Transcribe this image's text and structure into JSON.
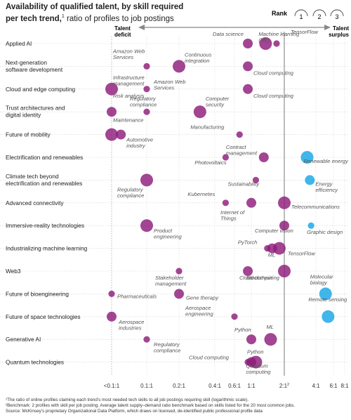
{
  "header": {
    "title_bold": "Availability of qualified talent, by skill required per tech trend,",
    "title_sup": "1",
    "title_rest": "ratio of profiles to job postings"
  },
  "rank_legend": {
    "label": "Rank",
    "ranks": [
      "1",
      "2",
      "3"
    ]
  },
  "axis_labels": {
    "left": "Talent deficit",
    "right": "Talent surplus"
  },
  "colors": {
    "purple": "#8E1C7A",
    "blue": "#1FA9E6",
    "grid": "#bdbdbd"
  },
  "chart_data": {
    "type": "scatter",
    "x_scale": "log",
    "x_ticks": [
      "<0.1:1",
      "0.1:1",
      "0.2:1",
      "0.4:1",
      "0.6:1",
      "1:1",
      "2:1",
      "4:1",
      "6:1",
      "8:1"
    ],
    "x_tick_values": [
      0.05,
      0.1,
      0.2,
      0.4,
      0.6,
      1,
      2,
      4,
      6,
      8
    ],
    "x_tick_sups": [
      "",
      "",
      "",
      "",
      "",
      "",
      "2",
      "",
      "",
      ""
    ],
    "benchmark_ratio": 2,
    "trends": [
      "Applied AI",
      "Next-generation software development",
      "Cloud and edge computing",
      "Trust architectures and digital identity",
      "Future of mobility",
      "Electrification and renewables",
      "Climate tech beyond electrification and renewables",
      "Advanced connectivity",
      "Immersive-reality technologies",
      "Industrializing machine learning",
      "Web3",
      "Future of bioengineering",
      "Future of space technologies",
      "Generative AI",
      "Quantum technologies"
    ],
    "trend_lines": [
      [
        "Applied AI"
      ],
      [
        "Next-generation",
        "software development"
      ],
      [
        "Cloud and edge computing"
      ],
      [
        "Trust architectures and",
        "digital identity"
      ],
      [
        "Future of mobility"
      ],
      [
        "Electrification and renewables"
      ],
      [
        "Climate tech beyond",
        "electrification and renewables"
      ],
      [
        "Advanced connectivity"
      ],
      [
        "Immersive-reality technologies"
      ],
      [
        "Industrializing machine learning"
      ],
      [
        "Web3"
      ],
      [
        "Future of bioengineering"
      ],
      [
        "Future of space technologies"
      ],
      [
        "Generative AI"
      ],
      [
        "Quantum technologies"
      ]
    ],
    "skills": [
      {
        "row": 0,
        "x": 0.9,
        "rank": 2,
        "label": "Data science"
      },
      {
        "row": 0,
        "x": 1.35,
        "rank": 1,
        "label": "Machine learning (ML)"
      },
      {
        "row": 0,
        "x": 1.7,
        "rank": 3,
        "label": "TensorFlow"
      },
      {
        "row": 1,
        "x": 0.1,
        "rank": 3,
        "label": "Amazon Web Services"
      },
      {
        "row": 1,
        "x": 0.2,
        "rank": 1,
        "label": "Continuous integration"
      },
      {
        "row": 1,
        "x": 0.9,
        "rank": 2,
        "label": "Cloud computing"
      },
      {
        "row": 2,
        "x": 0.05,
        "rank": 1,
        "label": "Infrastructure management"
      },
      {
        "row": 2,
        "x": 0.1,
        "rank": 3,
        "label": "Amazon Web Services"
      },
      {
        "row": 2,
        "x": 0.9,
        "rank": 2,
        "label": "Cloud computing"
      },
      {
        "row": 3,
        "x": 0.05,
        "rank": 2,
        "label": "Risk analysis"
      },
      {
        "row": 3,
        "x": 0.1,
        "rank": 3,
        "label": "Regulatory compliance"
      },
      {
        "row": 3,
        "x": 0.3,
        "rank": 1,
        "label": "Computer security"
      },
      {
        "row": 4,
        "x": 0.05,
        "rank": 1,
        "label": "Maintenance"
      },
      {
        "row": 4,
        "x": 0.06,
        "rank": 2,
        "label": "Automotive industry"
      },
      {
        "row": 4,
        "x": 0.7,
        "rank": 3,
        "label": "Manufacturing"
      },
      {
        "row": 5,
        "x": 0.5,
        "rank": 3,
        "label": "Photovoltaics"
      },
      {
        "row": 5,
        "x": 1.3,
        "rank": 2,
        "label": "Contract management"
      },
      {
        "row": 5,
        "x": 3.3,
        "rank": 1,
        "label": "Renewable energy"
      },
      {
        "row": 6,
        "x": 0.1,
        "rank": 1,
        "label": "Regulatory compliance"
      },
      {
        "row": 6,
        "x": 1.1,
        "rank": 3,
        "label": "Sustainability"
      },
      {
        "row": 6,
        "x": 3.5,
        "rank": 2,
        "label": "Energy efficiency"
      },
      {
        "row": 7,
        "x": 0.5,
        "rank": 3,
        "label": "Kubernetes"
      },
      {
        "row": 7,
        "x": 1.0,
        "rank": 2,
        "label": "Internet of Things"
      },
      {
        "row": 7,
        "x": 2.0,
        "rank": 1,
        "label": "Telecommunications"
      },
      {
        "row": 8,
        "x": 0.1,
        "rank": 1,
        "label": "Product engineering"
      },
      {
        "row": 8,
        "x": 2.0,
        "rank": 2,
        "label": "Computer vision"
      },
      {
        "row": 8,
        "x": 3.6,
        "rank": 3,
        "label": "Graphic design"
      },
      {
        "row": 9,
        "x": 1.4,
        "rank": 3,
        "label": "PyTorch"
      },
      {
        "row": 9,
        "x": 1.55,
        "rank": 2,
        "label": "ML"
      },
      {
        "row": 9,
        "x": 1.8,
        "rank": 1,
        "label": "TensorFlow"
      },
      {
        "row": 10,
        "x": 0.2,
        "rank": 3,
        "label": "Stakeholder management"
      },
      {
        "row": 10,
        "x": 0.9,
        "rank": 2,
        "label": "Cloud computing"
      },
      {
        "row": 10,
        "x": 2.0,
        "rank": 1,
        "label": "Blockchain"
      },
      {
        "row": 11,
        "x": 0.05,
        "rank": 3,
        "label": "Pharmaceuticals"
      },
      {
        "row": 11,
        "x": 0.2,
        "rank": 2,
        "label": "Gene therapy"
      },
      {
        "row": 11,
        "x": 5.0,
        "rank": 1,
        "label": "Molecular biology"
      },
      {
        "row": 12,
        "x": 0.05,
        "rank": 2,
        "label": "Aerospace industries"
      },
      {
        "row": 12,
        "x": 0.6,
        "rank": 3,
        "label": "Aerospace engineering"
      },
      {
        "row": 12,
        "x": 5.3,
        "rank": 1,
        "label": "Remote sensing"
      },
      {
        "row": 13,
        "x": 0.1,
        "rank": 3,
        "label": "Regulatory compliance"
      },
      {
        "row": 13,
        "x": 1.0,
        "rank": 2,
        "label": "Python"
      },
      {
        "row": 13,
        "x": 1.5,
        "rank": 1,
        "label": "ML"
      },
      {
        "row": 14,
        "x": 0.9,
        "rank": 3,
        "label": "Cloud computing"
      },
      {
        "row": 14,
        "x": 1.0,
        "rank": 2,
        "label": "Python"
      },
      {
        "row": 14,
        "x": 1.1,
        "rank": 1,
        "label": "Quantum computing"
      }
    ]
  },
  "footnotes": [
    "¹The ratio of online profiles claiming each trend's most needed tech skills to all job postings requiring skill (logarithmic scale).",
    "²Benchmark: 2 profiles with skill per job posting. Average talent supply–demand ratio benchmark based on skills listed for the 20 most common jobs.",
    "Source: McKinsey's proprietary Organizational Data Platform, which draws on licensed, de-identified public professional profile data"
  ]
}
